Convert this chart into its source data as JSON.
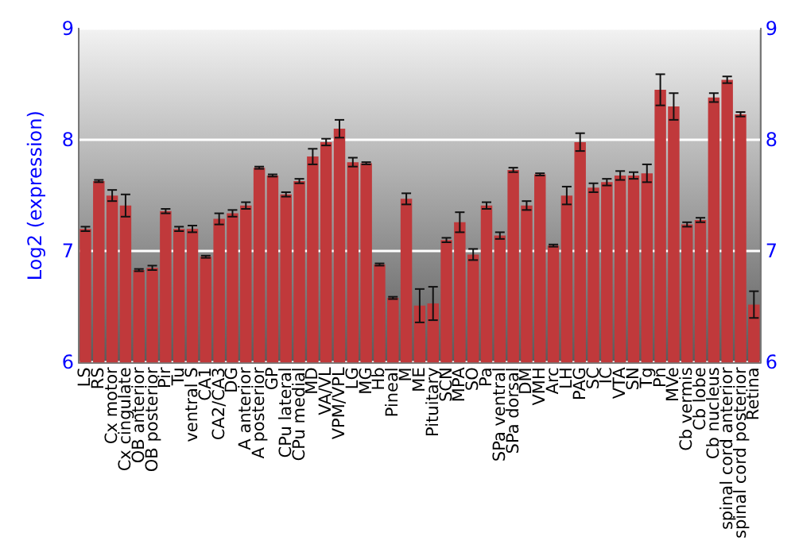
{
  "chart_data": {
    "type": "bar",
    "ylabel": "Log2 (expression)",
    "categories": [
      "LS",
      "RS",
      "Cx motor",
      "Cx cingulate",
      "OB anterior",
      "OB posterior",
      "Pir",
      "Tu",
      "ventral S",
      "CA1",
      "CA2/CA3",
      "DG",
      "A anterior",
      "A posterior",
      "GP",
      "CPu lateral",
      "CPu medial",
      "MD",
      "VA/VL",
      "VPM/VPL",
      "LG",
      "MG",
      "Hb",
      "Pineal",
      "M",
      "ME",
      "Pituitary",
      "SCN",
      "MPA",
      "SO",
      "Pa",
      "SPa ventral",
      "SPa dorsal",
      "DM",
      "VMH",
      "Arc",
      "LH",
      "PAG",
      "SC",
      "IC",
      "VTA",
      "SN",
      "Tg",
      "Pn",
      "MVe",
      "Cb vermis",
      "Cb lobe",
      "Cb nucleus",
      "spinal cord anterior",
      "spinal cord posterior",
      "Retina"
    ],
    "values": [
      7.2,
      7.63,
      7.5,
      7.41,
      6.83,
      6.85,
      7.36,
      7.2,
      7.2,
      6.95,
      7.29,
      7.34,
      7.41,
      7.75,
      7.68,
      7.51,
      7.63,
      7.85,
      7.98,
      8.1,
      7.8,
      7.79,
      6.88,
      6.58,
      7.47,
      6.51,
      6.53,
      7.1,
      7.26,
      6.97,
      7.41,
      7.14,
      7.73,
      7.41,
      7.69,
      7.05,
      7.5,
      7.98,
      7.57,
      7.62,
      7.68,
      7.68,
      7.7,
      8.45,
      8.3,
      7.24,
      7.28,
      8.38,
      8.54,
      8.23,
      6.52
    ],
    "errors": [
      0.02,
      0.01,
      0.05,
      0.1,
      0.01,
      0.02,
      0.02,
      0.02,
      0.03,
      0.01,
      0.05,
      0.03,
      0.03,
      0.01,
      0.01,
      0.02,
      0.02,
      0.07,
      0.03,
      0.08,
      0.04,
      0.01,
      0.01,
      0.01,
      0.05,
      0.15,
      0.15,
      0.02,
      0.09,
      0.05,
      0.03,
      0.03,
      0.02,
      0.04,
      0.01,
      0.01,
      0.08,
      0.08,
      0.04,
      0.03,
      0.04,
      0.03,
      0.08,
      0.14,
      0.12,
      0.02,
      0.02,
      0.04,
      0.03,
      0.02,
      0.12
    ],
    "color": "#c0393b",
    "ylim": [
      6,
      9
    ],
    "yticks": [
      6,
      7,
      8,
      9
    ],
    "y2lim": [
      6,
      9
    ],
    "y2ticks": [
      6,
      7,
      8,
      9
    ],
    "grid": "y"
  }
}
